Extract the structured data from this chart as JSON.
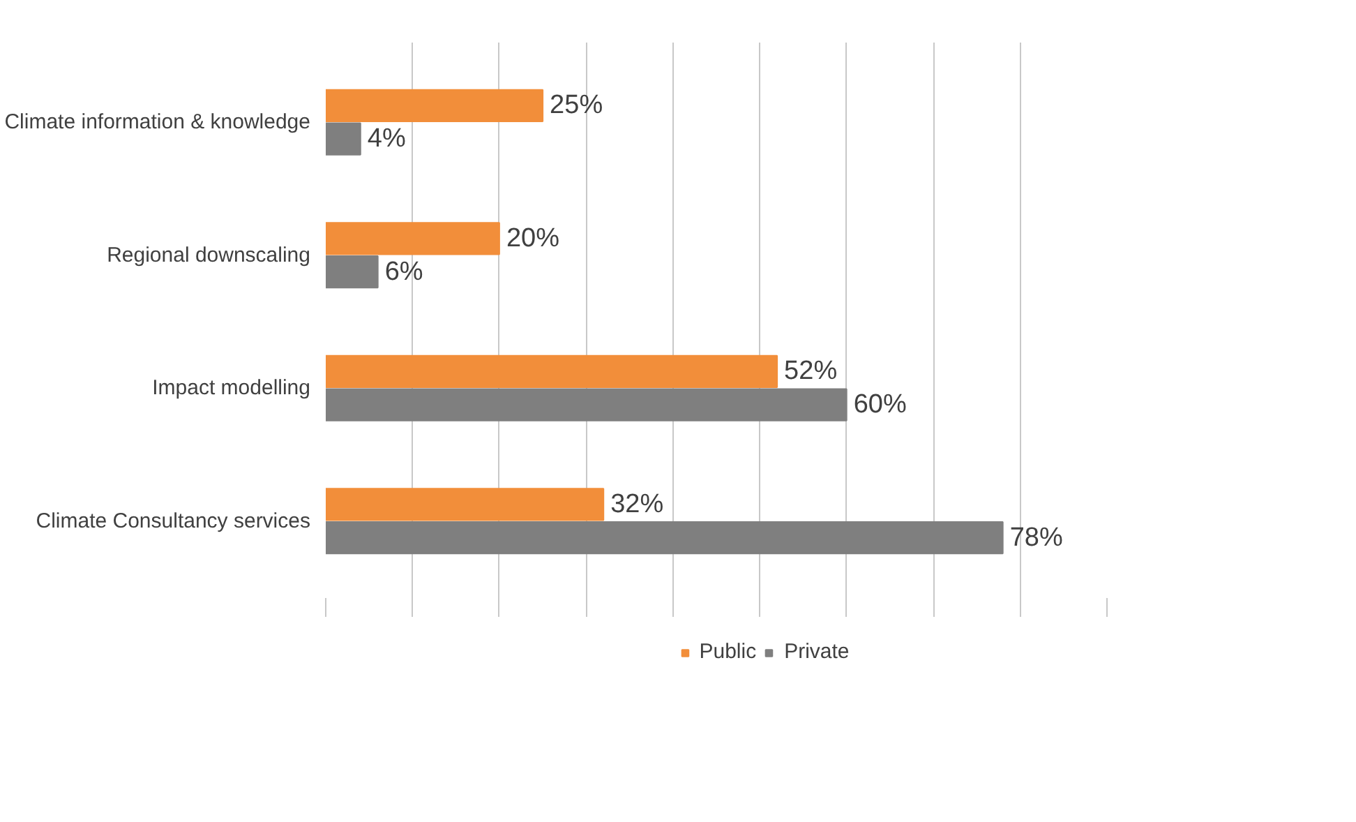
{
  "chart_data": {
    "type": "bar",
    "orientation": "horizontal",
    "categories": [
      "Climate information & knowledge",
      "Regional downscaling",
      "Impact modelling",
      "Climate Consultancy services"
    ],
    "series": [
      {
        "name": "Public",
        "color": "#f28e3a",
        "values": [
          25,
          20,
          52,
          32
        ],
        "value_labels": [
          "25%",
          "20%",
          "52%",
          "32%"
        ]
      },
      {
        "name": "Private",
        "color": "#7f7f7f",
        "values": [
          4,
          6,
          60,
          78
        ],
        "value_labels": [
          "4%",
          "6%",
          "60%",
          "78%"
        ]
      }
    ],
    "xticks": [
      {
        "value": 0,
        "label": null
      },
      {
        "value": 10,
        "label": null
      },
      {
        "value": 20,
        "label": null
      },
      {
        "value": 30,
        "label": null
      },
      {
        "value": 40,
        "label": null
      },
      {
        "value": 50,
        "label": null
      },
      {
        "value": 60,
        "label": null
      },
      {
        "value": 70,
        "label": null
      },
      {
        "value": 80,
        "label": null
      },
      {
        "value": 90,
        "label": null
      }
    ],
    "tick_labels": "y",
    "grid": "x",
    "legend": "bottom"
  }
}
